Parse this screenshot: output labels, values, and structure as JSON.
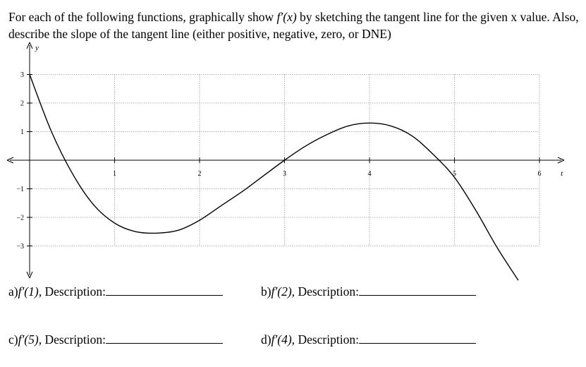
{
  "instructions": {
    "part1": "For each of the following functions, graphically show ",
    "fprime": "f′(x)",
    "part2": " by sketching the tangent line for the given x value. Also, describe the slope of the tangent line (either positive, negative, zero, or DNE)"
  },
  "chart_data": {
    "type": "line",
    "xlabel": "t",
    "ylabel": "y",
    "xlim": [
      -0.3,
      6.4
    ],
    "ylim": [
      -4.2,
      4
    ],
    "grid": true,
    "x_ticks": [
      "1",
      "2",
      "3",
      "4",
      "5",
      "6"
    ],
    "y_ticks": [
      "3",
      "2",
      "1",
      "-1",
      "-2",
      "-3"
    ],
    "curve": {
      "x": [
        0,
        0.25,
        0.5,
        0.75,
        1.0,
        1.25,
        1.5,
        1.75,
        2.0,
        2.25,
        2.5,
        2.75,
        3.0,
        3.25,
        3.5,
        3.75,
        4.0,
        4.25,
        4.5,
        4.75,
        5.0,
        5.25,
        5.5,
        5.75
      ],
      "y": [
        3.0,
        1.05,
        -0.45,
        -1.55,
        -2.2,
        -2.5,
        -2.55,
        -2.45,
        -2.1,
        -1.6,
        -1.1,
        -0.55,
        0.0,
        0.5,
        0.9,
        1.2,
        1.3,
        1.2,
        0.85,
        0.2,
        -0.6,
        -1.75,
        -3.05,
        -4.2
      ]
    }
  },
  "questions": [
    {
      "label": "a)",
      "fn": "f′(1), ",
      "text": "Description:"
    },
    {
      "label": "b)",
      "fn": "f′(2), ",
      "text": "Description:"
    },
    {
      "label": "c)",
      "fn": "f′(5), ",
      "text": "Description:"
    },
    {
      "label": "d)",
      "fn": "f′(4), ",
      "text": "Description:"
    }
  ]
}
